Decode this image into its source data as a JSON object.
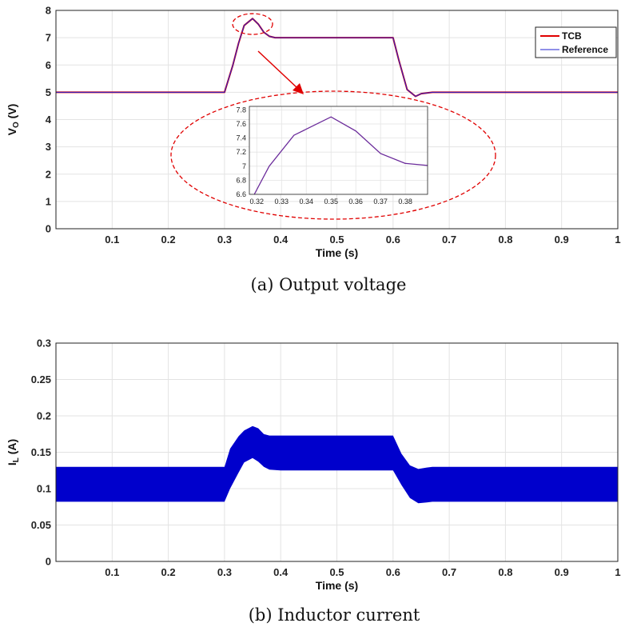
{
  "chart_data": [
    {
      "type": "line",
      "xlabel": "Time (s)",
      "ylabel": "V",
      "ylabel_sub": "O",
      "ylabel_unit": " (V)",
      "xlim": [
        0,
        1
      ],
      "ylim": [
        0,
        8
      ],
      "xticks": [
        0.1,
        0.2,
        0.3,
        0.4,
        0.5,
        0.6,
        0.7,
        0.8,
        0.9,
        1
      ],
      "xtick_labels": [
        "0.1",
        "0.2",
        "0.3",
        "0.4",
        "0.5",
        "0.6",
        "0.7",
        "0.8",
        "0.9",
        "1"
      ],
      "yticks": [
        0,
        1,
        2,
        3,
        4,
        5,
        6,
        7,
        8
      ],
      "ytick_labels": [
        "0",
        "1",
        "2",
        "3",
        "4",
        "5",
        "6",
        "7",
        "8"
      ],
      "grid": true,
      "legend": "top-right",
      "series": [
        {
          "name": "TCB",
          "color": "#e00000",
          "x": [
            0,
            0.3,
            0.315,
            0.325,
            0.335,
            0.35,
            0.36,
            0.37,
            0.38,
            0.39,
            0.4,
            0.5,
            0.6,
            0.61,
            0.625,
            0.64,
            0.65,
            0.67,
            0.7,
            1
          ],
          "y": [
            5,
            5,
            6,
            6.8,
            7.45,
            7.7,
            7.5,
            7.2,
            7.05,
            7.0,
            7.0,
            7.0,
            7.0,
            6.2,
            5.1,
            4.85,
            4.95,
            5.0,
            5.0,
            5.0
          ]
        },
        {
          "name": "Reference",
          "color": "#2020d0",
          "x": [
            0,
            0.3,
            0.315,
            0.325,
            0.335,
            0.35,
            0.36,
            0.37,
            0.38,
            0.39,
            0.4,
            0.5,
            0.6,
            0.61,
            0.625,
            0.64,
            0.65,
            0.67,
            0.7,
            1
          ],
          "y": [
            5,
            5,
            6,
            6.8,
            7.45,
            7.7,
            7.5,
            7.2,
            7.05,
            7.0,
            7.0,
            7.0,
            7.0,
            6.2,
            5.1,
            4.85,
            4.95,
            5.0,
            5.0,
            5.0
          ]
        }
      ],
      "inset": {
        "type": "line",
        "xlim": [
          0.317,
          0.389
        ],
        "ylim": [
          6.6,
          7.85
        ],
        "xticks": [
          0.32,
          0.33,
          0.34,
          0.35,
          0.36,
          0.37,
          0.38
        ],
        "xtick_labels": [
          "0.32",
          "0.33",
          "0.34",
          "0.35",
          "0.36",
          "0.37",
          "0.38"
        ],
        "yticks": [
          6.6,
          6.8,
          7,
          7.2,
          7.4,
          7.6,
          7.8
        ],
        "ytick_labels": [
          "6.6",
          "6.8",
          "7",
          "7.2",
          "7.4",
          "7.6",
          "7.8"
        ],
        "grid": true,
        "x": [
          0.319,
          0.325,
          0.335,
          0.35,
          0.36,
          0.37,
          0.38,
          0.389
        ],
        "y": [
          6.6,
          7.0,
          7.44,
          7.7,
          7.5,
          7.18,
          7.04,
          7.01
        ],
        "color": "#6a2a9a",
        "highlight_color": "#e00000"
      },
      "caption": "(a) Output voltage"
    },
    {
      "type": "area",
      "xlabel": "Time (s)",
      "ylabel": "I",
      "ylabel_sub": "L",
      "ylabel_unit": " (A)",
      "xlim": [
        0,
        1
      ],
      "ylim": [
        0,
        0.3
      ],
      "xticks": [
        0.1,
        0.2,
        0.3,
        0.4,
        0.5,
        0.6,
        0.7,
        0.8,
        0.9,
        1
      ],
      "xtick_labels": [
        "0.1",
        "0.2",
        "0.3",
        "0.4",
        "0.5",
        "0.6",
        "0.7",
        "0.8",
        "0.9",
        "1"
      ],
      "yticks": [
        0,
        0.05,
        0.1,
        0.15,
        0.2,
        0.25,
        0.3
      ],
      "ytick_labels": [
        "0",
        "0.05",
        "0.1",
        "0.15",
        "0.2",
        "0.25",
        "0.3"
      ],
      "grid": true,
      "color": "#0000cc",
      "x": [
        0,
        0.3,
        0.31,
        0.325,
        0.335,
        0.35,
        0.36,
        0.37,
        0.38,
        0.4,
        0.5,
        0.6,
        0.615,
        0.63,
        0.645,
        0.66,
        0.67,
        0.7,
        1
      ],
      "upper": [
        0.13,
        0.13,
        0.155,
        0.172,
        0.18,
        0.186,
        0.183,
        0.175,
        0.173,
        0.173,
        0.173,
        0.173,
        0.148,
        0.132,
        0.127,
        0.129,
        0.13,
        0.13,
        0.13
      ],
      "lower": [
        0.082,
        0.082,
        0.1,
        0.122,
        0.136,
        0.142,
        0.137,
        0.13,
        0.126,
        0.125,
        0.125,
        0.125,
        0.105,
        0.087,
        0.08,
        0.081,
        0.082,
        0.082,
        0.082
      ],
      "caption": "(b) Inductor current"
    }
  ]
}
